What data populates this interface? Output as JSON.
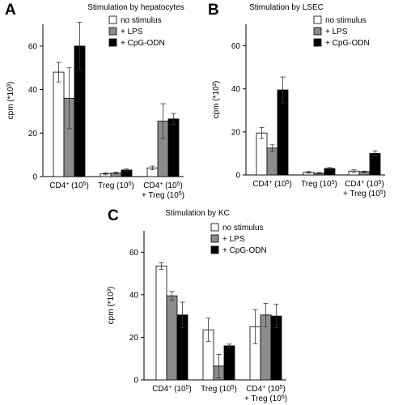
{
  "chart_data": [
    {
      "panel_label": "A",
      "type": "bar",
      "title": "Stimulation by hepatocytes",
      "ylabel": "cpm (*10³)",
      "ylim": [
        0,
        70
      ],
      "yticks": [
        0,
        20,
        40,
        60
      ],
      "categories": [
        {
          "lines": [
            {
              "t": "CD4"
            },
            {
              "sup": "+"
            },
            {
              "t": " (10"
            },
            {
              "sup": "5"
            },
            {
              "t": ")"
            }
          ],
          "line2": null
        },
        {
          "lines": [
            {
              "t": "Treg (10"
            },
            {
              "sup": "5"
            },
            {
              "t": ")"
            }
          ],
          "line2": null
        },
        {
          "lines": [
            {
              "t": "CD4"
            },
            {
              "sup": "+"
            },
            {
              "t": " (10"
            },
            {
              "sup": "5"
            },
            {
              "t": ")"
            }
          ],
          "line2": [
            {
              "t": "+ Treg (10"
            },
            {
              "sup": "5"
            },
            {
              "t": ")"
            }
          ]
        }
      ],
      "series": [
        {
          "name": "no stimulus",
          "color": "#ffffff",
          "values": [
            48,
            1.3,
            4
          ],
          "errors": [
            4.5,
            0.5,
            0.8
          ]
        },
        {
          "name": "+ LPS",
          "color": "#8c8c8c",
          "values": [
            36,
            1.6,
            25.5
          ],
          "errors": [
            14,
            0.4,
            8
          ]
        },
        {
          "name": "+ CpG-ODN",
          "color": "#000000",
          "values": [
            60,
            3,
            26.5
          ],
          "errors": [
            11,
            0.5,
            2.5
          ]
        }
      ],
      "legend_position": "top-right"
    },
    {
      "panel_label": "B",
      "type": "bar",
      "title": "Stimulation by LSEC",
      "ylabel": "cpm (*10³)",
      "ylim": [
        0,
        70
      ],
      "yticks": [
        0,
        20,
        40,
        60
      ],
      "categories": [
        {
          "lines": [
            {
              "t": "CD4"
            },
            {
              "sup": "+"
            },
            {
              "t": " (10"
            },
            {
              "sup": "5"
            },
            {
              "t": ")"
            }
          ],
          "line2": null
        },
        {
          "lines": [
            {
              "t": "Treg (10"
            },
            {
              "sup": "5"
            },
            {
              "t": ")"
            }
          ],
          "line2": null
        },
        {
          "lines": [
            {
              "t": "CD4"
            },
            {
              "sup": "+"
            },
            {
              "t": " (10"
            },
            {
              "sup": "5"
            },
            {
              "t": ")"
            }
          ],
          "line2": [
            {
              "t": "+ Treg (10"
            },
            {
              "sup": "5"
            },
            {
              "t": ")"
            }
          ]
        }
      ],
      "series": [
        {
          "name": "no stimulus",
          "color": "#ffffff",
          "values": [
            19.5,
            1.2,
            1.8
          ],
          "errors": [
            2.5,
            0.4,
            0.7
          ]
        },
        {
          "name": "+ LPS",
          "color": "#8c8c8c",
          "values": [
            12.5,
            0.8,
            1.5
          ],
          "errors": [
            1.5,
            0.3,
            0.3
          ]
        },
        {
          "name": "+ CpG-ODN",
          "color": "#000000",
          "values": [
            39.5,
            3,
            10
          ],
          "errors": [
            6,
            0.4,
            1.2
          ]
        }
      ],
      "legend_position": "top-right"
    },
    {
      "panel_label": "C",
      "type": "bar",
      "title": "Stimulation by KC",
      "ylabel": "cpm (*10³)",
      "ylim": [
        0,
        70
      ],
      "yticks": [
        0,
        20,
        40,
        60
      ],
      "categories": [
        {
          "lines": [
            {
              "t": "CD4"
            },
            {
              "sup": "+"
            },
            {
              "t": " (10"
            },
            {
              "sup": "5"
            },
            {
              "t": ")"
            }
          ],
          "line2": null
        },
        {
          "lines": [
            {
              "t": "Treg (10"
            },
            {
              "sup": "5"
            },
            {
              "t": ")"
            }
          ],
          "line2": null
        },
        {
          "lines": [
            {
              "t": "CD4"
            },
            {
              "sup": "+"
            },
            {
              "t": " (10"
            },
            {
              "sup": "5"
            },
            {
              "t": ")"
            }
          ],
          "line2": [
            {
              "t": "+ Treg (10"
            },
            {
              "sup": "5"
            },
            {
              "t": ")"
            }
          ]
        }
      ],
      "series": [
        {
          "name": "no stimulus",
          "color": "#ffffff",
          "values": [
            53.5,
            23.5,
            25
          ],
          "errors": [
            1.5,
            5.5,
            8
          ]
        },
        {
          "name": "+ LPS",
          "color": "#8c8c8c",
          "values": [
            39.5,
            6.5,
            30.5
          ],
          "errors": [
            2,
            5.5,
            5.5
          ]
        },
        {
          "name": "+ CpG-ODN",
          "color": "#000000",
          "values": [
            30.5,
            16,
            30
          ],
          "errors": [
            6,
            0.8,
            5.5
          ]
        }
      ],
      "legend_position": "top-right"
    }
  ]
}
